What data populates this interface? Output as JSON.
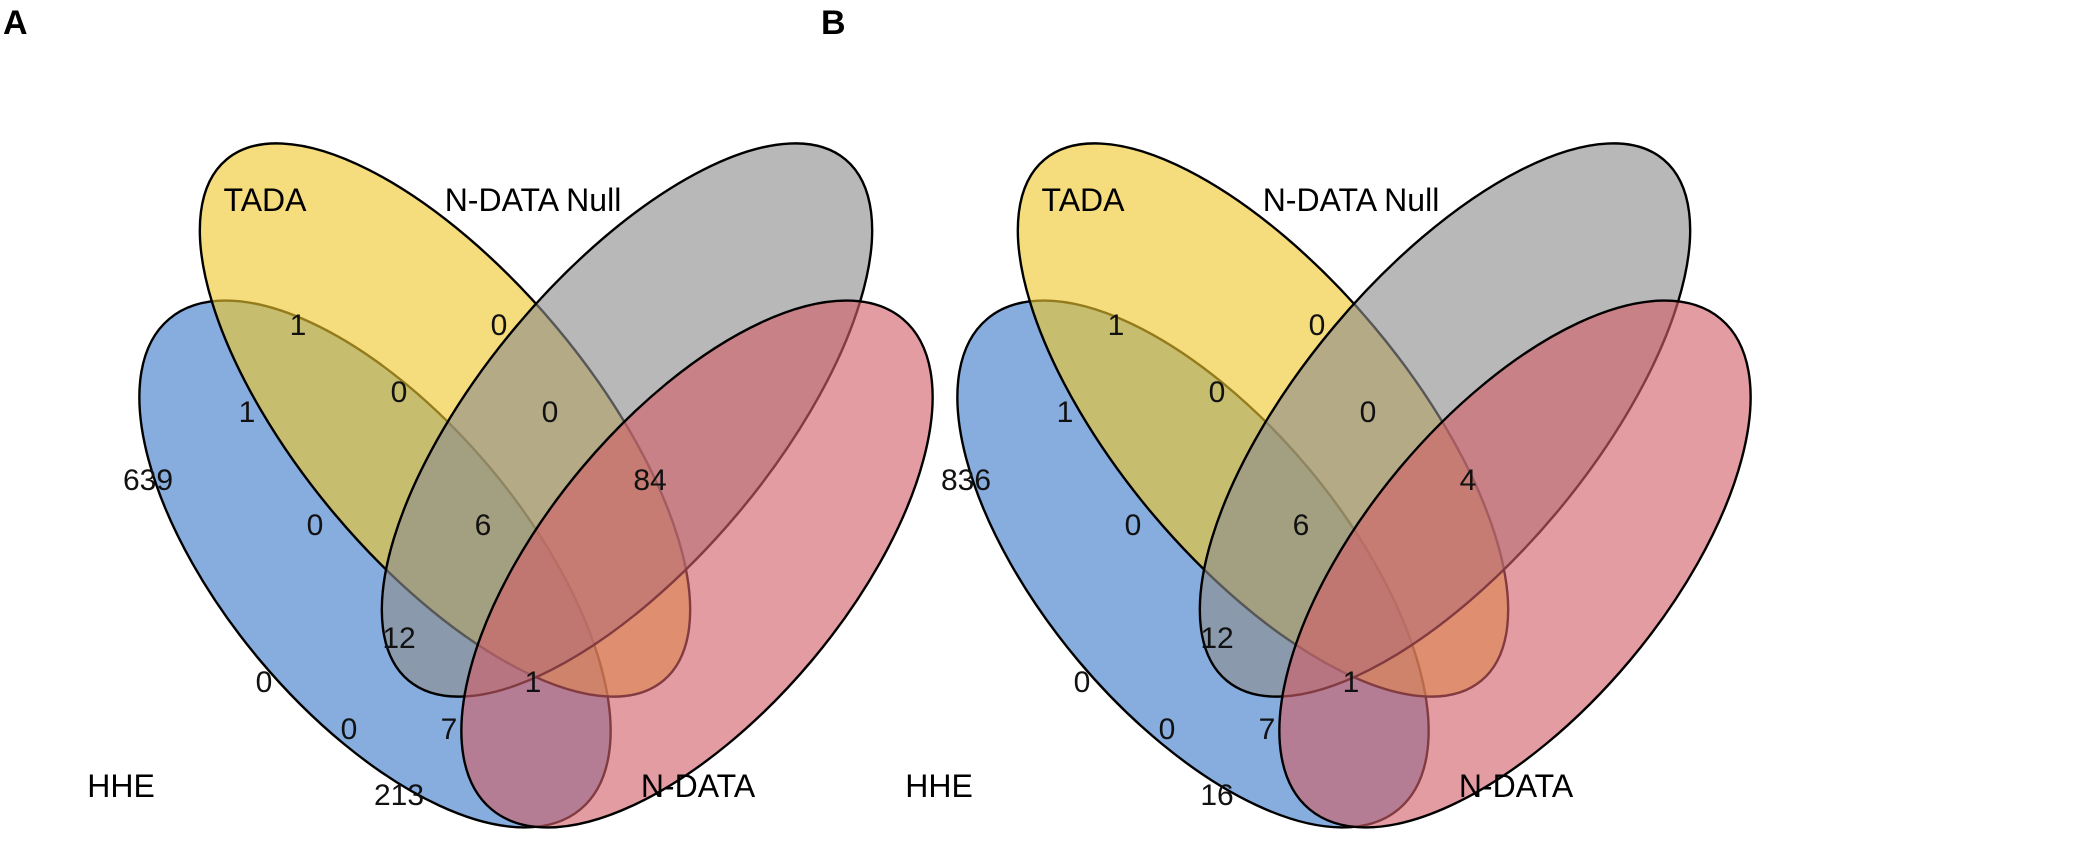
{
  "sets": {
    "hhe": {
      "label": "HHE",
      "color": "#3b7ac9"
    },
    "tada": {
      "label": "TADA",
      "color": "#efc62c"
    },
    "null": {
      "label": "N-DATA Null",
      "color": "#8c8c8c"
    },
    "ndata": {
      "label": "N-DATA",
      "color": "#d26068"
    }
  },
  "panels": [
    {
      "letter": "A",
      "counts": {
        "hhe_only": "639",
        "tada_only": "1",
        "null_only": "0",
        "ndata_only": "84",
        "hhe_tada": "1",
        "tada_null": "0",
        "null_ndata": "0",
        "hhe_tada_null": "0",
        "tada_null_ndata": "6",
        "all": "12",
        "hhe_null": "0",
        "tada_ndata": "1",
        "hhe_null_ndata": "0",
        "hhe_tada_ndata": "7",
        "hhe_ndata": "213"
      }
    },
    {
      "letter": "B",
      "counts": {
        "hhe_only": "836",
        "tada_only": "1",
        "null_only": "0",
        "ndata_only": "4",
        "hhe_tada": "1",
        "tada_null": "0",
        "null_ndata": "0",
        "hhe_tada_null": "0",
        "tada_null_ndata": "6",
        "all": "12",
        "hhe_null": "0",
        "tada_ndata": "1",
        "hhe_null_ndata": "0",
        "hhe_tada_ndata": "7",
        "hhe_ndata": "16"
      }
    }
  ]
}
